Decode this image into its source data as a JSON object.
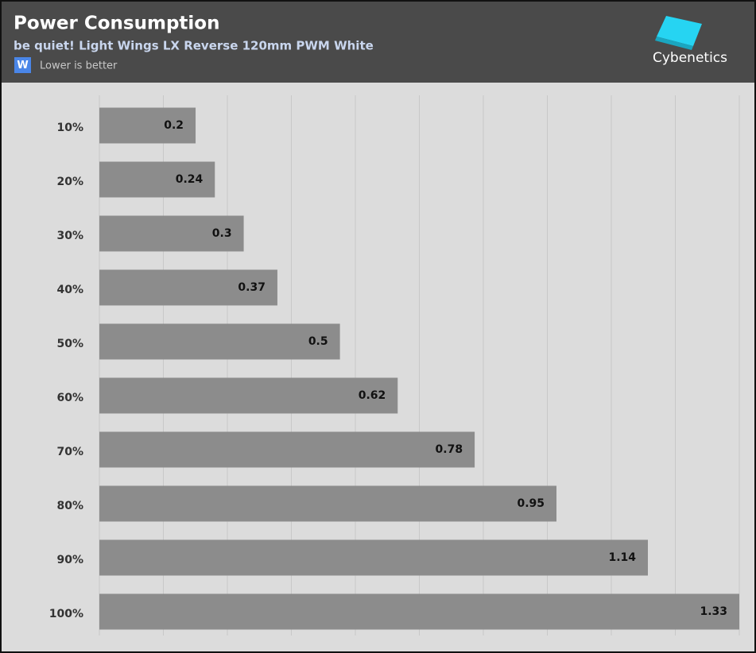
{
  "chart_data": {
    "type": "hbar",
    "title": "Power Consumption",
    "subtitle": "be quiet! Light Wings LX Reverse 120mm PWM White",
    "unit": "W",
    "note": "Lower is better",
    "brand": "Cybenetics",
    "categories": [
      "10%",
      "20%",
      "30%",
      "40%",
      "50%",
      "60%",
      "70%",
      "80%",
      "90%",
      "100%"
    ],
    "values": [
      0.2,
      0.24,
      0.3,
      0.37,
      0.5,
      0.62,
      0.78,
      0.95,
      1.14,
      1.33
    ],
    "color": "#8c8c8c",
    "xlim": [
      0,
      1.33
    ],
    "grid": true
  }
}
